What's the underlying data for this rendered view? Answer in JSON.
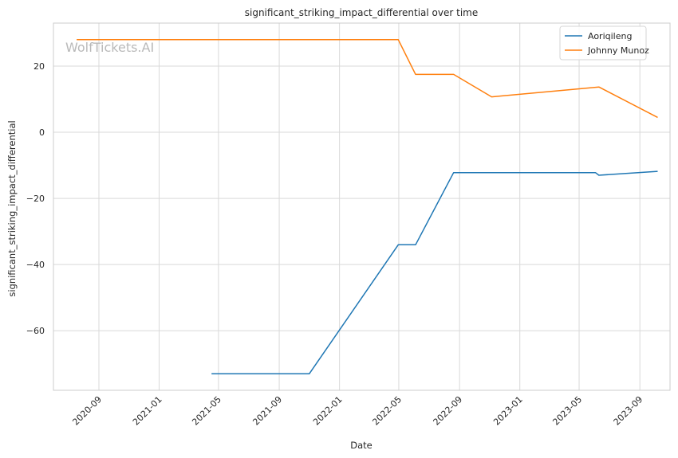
{
  "watermark": "WolfTickets.AI",
  "chart_data": {
    "type": "line",
    "title": "significant_striking_impact_differential over time",
    "xlabel": "Date",
    "ylabel": "significant_striking_impact_differential",
    "x_ticks": [
      "2020-09",
      "2021-01",
      "2021-05",
      "2021-09",
      "2022-01",
      "2022-05",
      "2022-09",
      "2023-01",
      "2023-05",
      "2023-09"
    ],
    "y_ticks": [
      20,
      0,
      -20,
      -40,
      -60
    ],
    "y_tick_labels": [
      "20",
      "0",
      "−20",
      "−40",
      "−60"
    ],
    "xlim": [
      "2020-06-01",
      "2023-11-01"
    ],
    "ylim": [
      -78,
      33
    ],
    "grid": true,
    "legend_position": "top-right",
    "series": [
      {
        "name": "Aoriqileng",
        "color": "#1f77b4",
        "points": [
          {
            "x": "2021-04-17",
            "y": -73
          },
          {
            "x": "2021-11-01",
            "y": -73
          },
          {
            "x": "2022-04-30",
            "y": -34
          },
          {
            "x": "2022-06-04",
            "y": -34
          },
          {
            "x": "2022-08-20",
            "y": -12.2
          },
          {
            "x": "2023-06-03",
            "y": -12.2
          },
          {
            "x": "2023-06-10",
            "y": -13
          },
          {
            "x": "2023-10-07",
            "y": -11.8
          }
        ]
      },
      {
        "name": "Johnny Munoz",
        "color": "#ff7f0e",
        "points": [
          {
            "x": "2020-07-18",
            "y": 28
          },
          {
            "x": "2022-04-30",
            "y": 28
          },
          {
            "x": "2022-06-04",
            "y": 17.5
          },
          {
            "x": "2022-08-20",
            "y": 17.5
          },
          {
            "x": "2022-11-05",
            "y": 10.7
          },
          {
            "x": "2023-06-10",
            "y": 13.7
          },
          {
            "x": "2023-10-07",
            "y": 4.5
          }
        ]
      }
    ]
  }
}
